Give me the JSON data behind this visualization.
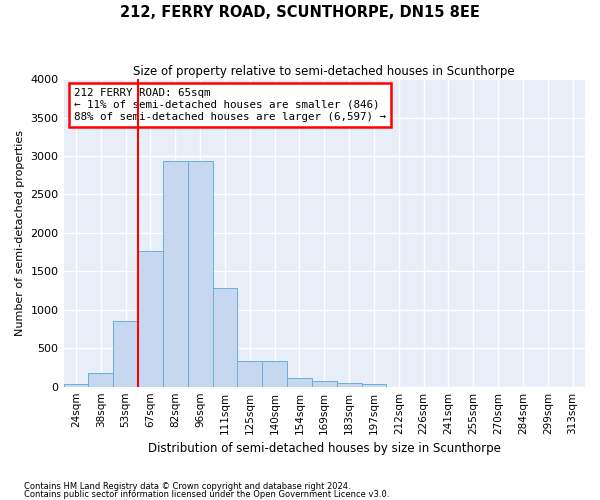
{
  "title": "212, FERRY ROAD, SCUNTHORPE, DN15 8EE",
  "subtitle": "Size of property relative to semi-detached houses in Scunthorpe",
  "xlabel": "Distribution of semi-detached houses by size in Scunthorpe",
  "ylabel": "Number of semi-detached properties",
  "categories": [
    "24sqm",
    "38sqm",
    "53sqm",
    "67sqm",
    "82sqm",
    "96sqm",
    "111sqm",
    "125sqm",
    "140sqm",
    "154sqm",
    "169sqm",
    "183sqm",
    "197sqm",
    "212sqm",
    "226sqm",
    "241sqm",
    "255sqm",
    "270sqm",
    "284sqm",
    "299sqm",
    "313sqm"
  ],
  "bar_heights": [
    30,
    180,
    850,
    1760,
    2940,
    2940,
    1280,
    330,
    330,
    110,
    70,
    50,
    35,
    0,
    0,
    0,
    0,
    0,
    0,
    0,
    0
  ],
  "bar_color": "#c5d8f0",
  "bar_edge_color": "#6aaed6",
  "vline_x_index": 2.5,
  "annotation_text": "212 FERRY ROAD: 65sqm\n← 11% of semi-detached houses are smaller (846)\n88% of semi-detached houses are larger (6,597) →",
  "annotation_box_color": "white",
  "annotation_box_edge_color": "red",
  "vline_color": "red",
  "ylim": [
    0,
    4000
  ],
  "yticks": [
    0,
    500,
    1000,
    1500,
    2000,
    2500,
    3000,
    3500,
    4000
  ],
  "bg_color": "#e8eef8",
  "grid_color": "white",
  "footer1": "Contains HM Land Registry data © Crown copyright and database right 2024.",
  "footer2": "Contains public sector information licensed under the Open Government Licence v3.0."
}
